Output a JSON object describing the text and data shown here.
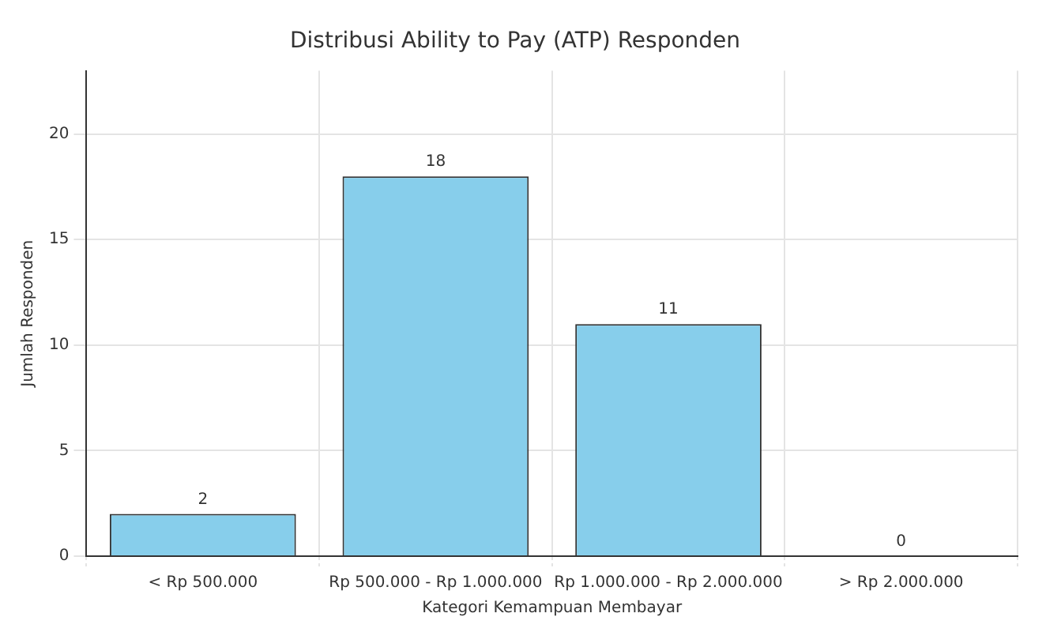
{
  "chart_data": {
    "type": "bar",
    "title": "Distribusi Ability to Pay (ATP) Responden",
    "xlabel": "Kategori Kemampuan Membayar",
    "ylabel": "Jumlah Responden",
    "categories": [
      "< Rp 500.000",
      "Rp 500.000 - Rp 1.000.000",
      "Rp 1.000.000 - Rp 2.000.000",
      "> Rp 2.000.000"
    ],
    "values": [
      2,
      18,
      11,
      0
    ],
    "color": "#87ceeb",
    "ylim": [
      0,
      23
    ],
    "yticks": [
      0,
      5,
      10,
      15,
      20
    ],
    "grid": true,
    "data_labels": true
  }
}
